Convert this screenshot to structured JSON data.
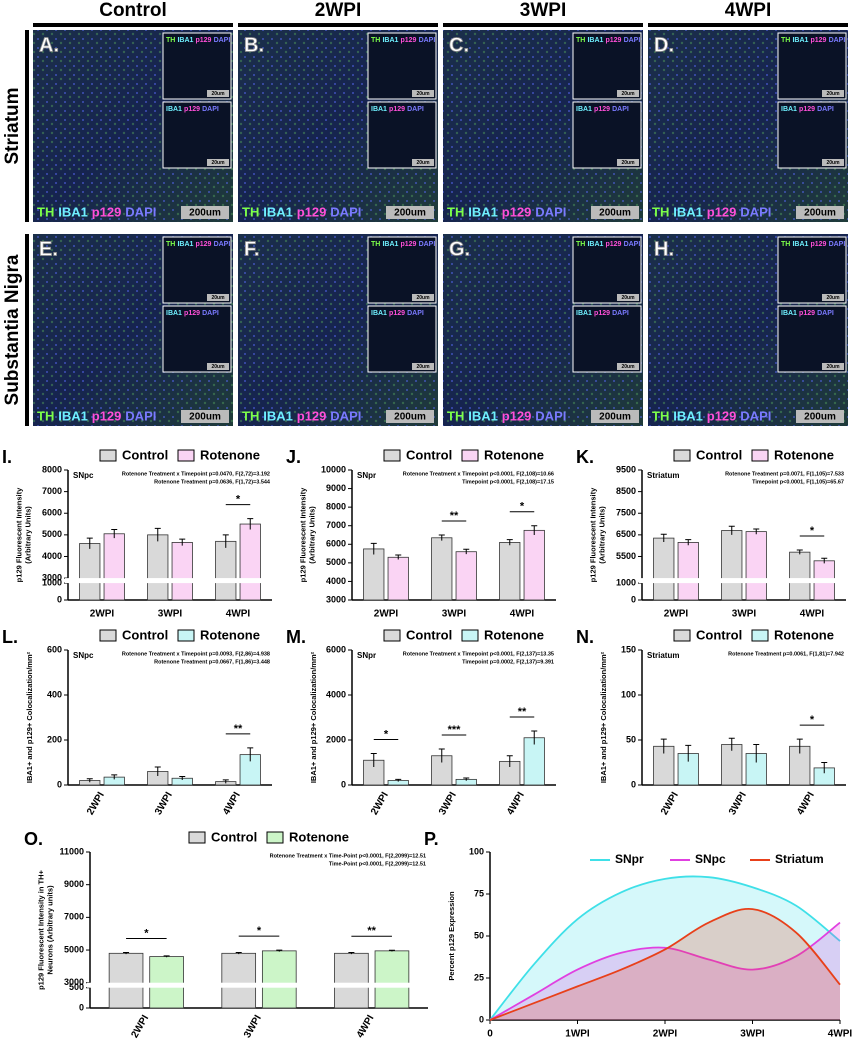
{
  "figure": {
    "columns": [
      "Control",
      "2WPI",
      "3WPI",
      "4WPI"
    ],
    "rows": [
      "Striatum",
      "Substantia Nigra"
    ],
    "panels": [
      "A.",
      "B.",
      "C.",
      "D.",
      "E.",
      "F.",
      "G.",
      "H."
    ],
    "stain_labels": [
      "TH",
      "IBA1",
      "p129",
      "DAPI"
    ],
    "stain_colors": [
      "#7dff4a",
      "#6ff0ff",
      "#ff4fd8",
      "#7a7aff"
    ],
    "scale_bar": "200um",
    "inset_scale_bar": "20um"
  },
  "chart_data": [
    {
      "type": "bar",
      "panel": "I.",
      "region": "SNpc",
      "annotations": [
        "Rotenone Treatment x Timepoint p=0.0470, F(2,72)=3.192",
        "Rotenone Treatment p=0.0636, F(1,72)=3.544"
      ],
      "y_label": [
        "p129 Fluorescent Intensity",
        "(Arbitrary Units)"
      ],
      "categories": [
        "2WPI",
        "3WPI",
        "4WPI"
      ],
      "series": [
        {
          "name": "Control",
          "color": "#d9d9d9",
          "values": [
            4600,
            5000,
            4700
          ],
          "errors": [
            250,
            300,
            300
          ]
        },
        {
          "name": "Rotenone",
          "color": "#fad4f4",
          "values": [
            5050,
            4650,
            5500
          ],
          "errors": [
            200,
            150,
            250
          ]
        }
      ],
      "significance": [
        null,
        null,
        "*"
      ],
      "ylim": [
        0,
        8000
      ],
      "ybreak": [
        1000,
        3000
      ],
      "yticks": [
        0,
        1000,
        3000,
        4000,
        5000,
        6000,
        7000,
        8000
      ]
    },
    {
      "type": "bar",
      "panel": "J.",
      "region": "SNpr",
      "annotations": [
        "Rotenone Treatment x Timepoint p<0.0001, F(2,108)=10.66",
        "Timepoint p<0.0001, F(2,108)=17.15"
      ],
      "y_label": [
        "p129 Fluorescent Intensity",
        "(Arbitrary Units)"
      ],
      "categories": [
        "2WPI",
        "3WPI",
        "4WPI"
      ],
      "series": [
        {
          "name": "Control",
          "color": "#d9d9d9",
          "values": [
            5750,
            6350,
            6100
          ],
          "errors": [
            300,
            150,
            150
          ]
        },
        {
          "name": "Rotenone",
          "color": "#fad4f4",
          "values": [
            5300,
            5600,
            6750
          ],
          "errors": [
            120,
            130,
            250
          ]
        }
      ],
      "significance": [
        null,
        "**",
        "*"
      ],
      "ylim": [
        3000,
        10000
      ],
      "yticks": [
        3000,
        4000,
        5000,
        6000,
        7000,
        8000,
        9000,
        10000
      ]
    },
    {
      "type": "bar",
      "panel": "K.",
      "region": "Striatum",
      "annotations": [
        "Rotenone Treatment p=0.0071, F(1,105)=7.533",
        "Timepoint p<0.0001, F(1,105)=65.67"
      ],
      "y_label": [
        "p129 Fluorescent Intensity",
        "(Arbitrary Units)"
      ],
      "categories": [
        "2WPI",
        "3WPI",
        "4WPI"
      ],
      "series": [
        {
          "name": "Control",
          "color": "#d9d9d9",
          "values": [
            6350,
            6700,
            5700
          ],
          "errors": [
            180,
            200,
            100
          ]
        },
        {
          "name": "Rotenone",
          "color": "#fad4f4",
          "values": [
            6150,
            6650,
            5300
          ],
          "errors": [
            130,
            120,
            120
          ]
        }
      ],
      "significance": [
        null,
        null,
        "*"
      ],
      "ylim": [
        0,
        9500
      ],
      "ybreak": [
        1000,
        4500
      ],
      "yticks": [
        0,
        1000,
        5500,
        6500,
        7500,
        8500,
        9500
      ]
    },
    {
      "type": "bar",
      "panel": "L.",
      "region": "SNpc",
      "annotations": [
        "Rotenone Treatment x Timepoint p=0.0093, F(2,86)=4.938",
        "Rotenone Treatment p=0.0667, F(1,86)=3.448"
      ],
      "y_label": [
        "IBA1+ and p129+ Colocalization/mm²"
      ],
      "categories": [
        "2WPI",
        "3WPI",
        "4WPI"
      ],
      "series": [
        {
          "name": "Control",
          "color": "#d9d9d9",
          "values": [
            20,
            60,
            15
          ],
          "errors": [
            8,
            20,
            8
          ]
        },
        {
          "name": "Rotenone",
          "color": "#c8f5f5",
          "values": [
            35,
            30,
            135
          ],
          "errors": [
            10,
            8,
            30
          ]
        }
      ],
      "significance": [
        null,
        null,
        "**"
      ],
      "ylim": [
        0,
        600
      ],
      "yticks": [
        0,
        200,
        400,
        600
      ]
    },
    {
      "type": "bar",
      "panel": "M.",
      "region": "SNpr",
      "annotations": [
        "Rotenone Treatment x Timepoint p<0.0001, F(2,137)=13.35",
        "Timepoint p=0.0002, F(2,137)=9.391"
      ],
      "y_label": [
        "IBA1+ and p129+ Colocalization/mm²"
      ],
      "categories": [
        "2WPI",
        "3WPI",
        "4WPI"
      ],
      "series": [
        {
          "name": "Control",
          "color": "#d9d9d9",
          "values": [
            1100,
            1300,
            1050
          ],
          "errors": [
            300,
            300,
            250
          ]
        },
        {
          "name": "Rotenone",
          "color": "#c8f5f5",
          "values": [
            200,
            250,
            2100
          ],
          "errors": [
            50,
            60,
            300
          ]
        }
      ],
      "significance": [
        "*",
        "***",
        "**"
      ],
      "ylim": [
        0,
        6000
      ],
      "yticks": [
        0,
        2000,
        4000,
        6000
      ]
    },
    {
      "type": "bar",
      "panel": "N.",
      "region": "Striatum",
      "annotations": [
        "Rotenone Treatment p=0.0061, F(1,81)=7.942"
      ],
      "y_label": [
        "IBA1+ and p129+ Colocalization/mm²"
      ],
      "categories": [
        "2WPI",
        "3WPI",
        "4WPI"
      ],
      "series": [
        {
          "name": "Control",
          "color": "#d9d9d9",
          "values": [
            43,
            45,
            43
          ],
          "errors": [
            8,
            7,
            8
          ]
        },
        {
          "name": "Rotenone",
          "color": "#c8f5f5",
          "values": [
            35,
            35,
            19
          ],
          "errors": [
            9,
            10,
            6
          ]
        }
      ],
      "significance": [
        null,
        null,
        "*"
      ],
      "ylim": [
        0,
        150
      ],
      "yticks": [
        0,
        50,
        100,
        150
      ]
    },
    {
      "type": "bar",
      "panel": "O.",
      "annotations": [
        "Rotenone Treatment x Time-Point p<0.0001, F(2,2099)=12.51",
        "Time-Point p<0.0001, F(2,2099)=12.51"
      ],
      "y_label": [
        "p129 Fluorescent Intensity in TH+",
        "Neurons (Arbitrary units)"
      ],
      "categories": [
        "2WPI",
        "3WPI",
        "4WPI"
      ],
      "series": [
        {
          "name": "Control",
          "color": "#d9d9d9",
          "values": [
            4800,
            4800,
            4800
          ],
          "errors": [
            50,
            50,
            50
          ]
        },
        {
          "name": "Rotenone",
          "color": "#ccf5c8",
          "values": [
            4600,
            4950,
            4950
          ],
          "errors": [
            40,
            45,
            40
          ]
        }
      ],
      "significance": [
        "*",
        "*",
        "**"
      ],
      "ylim": [
        0,
        11000
      ],
      "ybreak": [
        500,
        3000
      ],
      "yticks": [
        0,
        500,
        3000,
        5000,
        7000,
        9000,
        11000
      ]
    },
    {
      "type": "area",
      "panel": "P.",
      "y_label": [
        "Percent p129 Expression"
      ],
      "x": [
        0,
        0.5,
        1,
        1.5,
        2,
        2.5,
        3,
        3.5,
        4
      ],
      "series": [
        {
          "name": "SNpr",
          "color": "#3fe0e8",
          "values": [
            0,
            33,
            60,
            76,
            84,
            85,
            79,
            68,
            47
          ]
        },
        {
          "name": "SNpc",
          "color": "#e040e0",
          "values": [
            0,
            15,
            30,
            40,
            43,
            36,
            30,
            38,
            58
          ]
        },
        {
          "name": "Striatum",
          "color": "#e8401a",
          "values": [
            0,
            10,
            20,
            30,
            42,
            58,
            66,
            52,
            21
          ]
        }
      ],
      "xlim": [
        0,
        4
      ],
      "xticks": [
        0,
        {
          "value": 1,
          "label": "1WPI"
        },
        {
          "value": 2,
          "label": "2WPI"
        },
        {
          "value": 3,
          "label": "3WPI"
        },
        {
          "value": 4,
          "label": "4WPI"
        }
      ],
      "ylim": [
        0,
        100
      ],
      "yticks": [
        0,
        25,
        50,
        75,
        100
      ]
    }
  ]
}
